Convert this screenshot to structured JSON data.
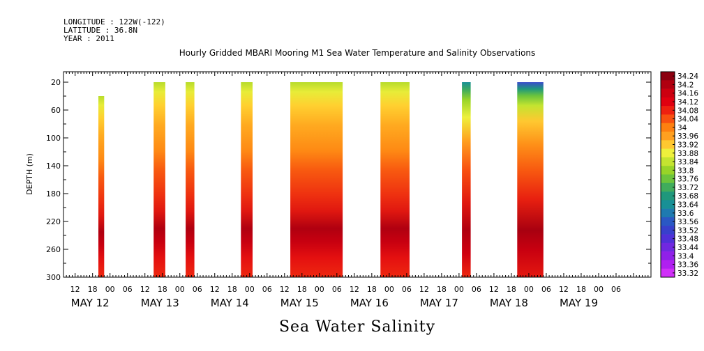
{
  "header": {
    "longitude": "LONGITUDE : 122W(-122)",
    "latitude": "LATITUDE : 36.8N",
    "year": "YEAR : 2011"
  },
  "chart_data": {
    "type": "heatmap",
    "title": "Hourly Gridded MBARI Mooring M1 Sea Water Temperature and Salinity Observations",
    "xlabel": "Sea Water Salinity",
    "ylabel": "DEPTH (m)",
    "y_ticks": [
      20,
      60,
      100,
      140,
      180,
      220,
      260,
      300
    ],
    "ylim": [
      300,
      5
    ],
    "x_hour_ticks": [
      "12",
      "18",
      "00",
      "06",
      "12",
      "18",
      "00",
      "06",
      "12",
      "18",
      "00",
      "06",
      "12",
      "18",
      "00",
      "06",
      "12",
      "18",
      "00",
      "06",
      "12",
      "18",
      "00",
      "06",
      "12",
      "18",
      "00",
      "06",
      "12",
      "18",
      "00",
      "06"
    ],
    "x_date_labels": [
      "MAY 12",
      "MAY 13",
      "MAY 14",
      "MAY 15",
      "MAY 16",
      "MAY 17",
      "MAY 18",
      "MAY 19"
    ],
    "xlim_hours_since_may12_00": [
      8,
      210
    ],
    "colorbar": {
      "labels": [
        "34.24",
        "34.2",
        "34.16",
        "34.12",
        "34.08",
        "34.04",
        "34",
        "33.96",
        "33.92",
        "33.88",
        "33.84",
        "33.8",
        "33.76",
        "33.72",
        "33.68",
        "33.64",
        "33.6",
        "33.56",
        "33.52",
        "33.48",
        "33.44",
        "33.4",
        "33.36",
        "33.32"
      ],
      "colors": [
        "#8c0010",
        "#b00010",
        "#cc0010",
        "#e00010",
        "#ee2010",
        "#f85010",
        "#fe8010",
        "#ffa020",
        "#ffc830",
        "#eef03c",
        "#c4e430",
        "#98d428",
        "#6cc43c",
        "#40ac5c",
        "#20987c",
        "#189096",
        "#1e7ab0",
        "#2a58c4",
        "#3840cc",
        "#5030d8",
        "#7028e0",
        "#9020e8",
        "#b020f0",
        "#d030f8"
      ]
    },
    "segments": [
      {
        "start": "2011-05-12 20:00",
        "end": "2011-05-12 22:00",
        "top_depth": 40,
        "bottom_depth": 300
      },
      {
        "start": "2011-05-13 15:00",
        "end": "2011-05-13 19:00",
        "top_depth": 20,
        "bottom_depth": 300
      },
      {
        "start": "2011-05-14 02:00",
        "end": "2011-05-14 05:00",
        "top_depth": 20,
        "bottom_depth": 300
      },
      {
        "start": "2011-05-14 21:00",
        "end": "2011-05-15 01:00",
        "top_depth": 20,
        "bottom_depth": 300
      },
      {
        "start": "2011-05-15 14:00",
        "end": "2011-05-16 08:00",
        "top_depth": 20,
        "bottom_depth": 300
      },
      {
        "start": "2011-05-16 21:00",
        "end": "2011-05-17 07:00",
        "top_depth": 20,
        "bottom_depth": 300
      },
      {
        "start": "2011-05-18 01:00",
        "end": "2011-05-18 04:00",
        "top_depth": 20,
        "bottom_depth": 300
      },
      {
        "start": "2011-05-18 20:00",
        "end": "2011-05-19 05:00",
        "top_depth": 20,
        "bottom_depth": 300
      }
    ]
  }
}
